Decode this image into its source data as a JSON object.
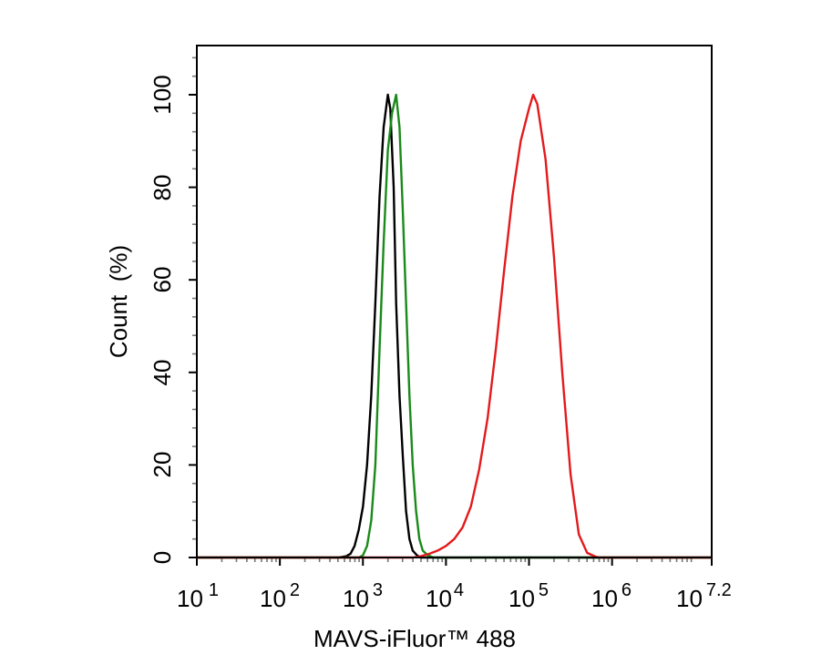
{
  "chart_data": {
    "type": "line",
    "title": "",
    "xlabel": "MAVS-iFluor™ 488",
    "ylabel": "Count  (%)",
    "x_scale": "log10",
    "xlim": [
      1,
      7.2
    ],
    "ylim": [
      0,
      100
    ],
    "x_ticks": [
      {
        "base": "10",
        "exp": "1",
        "value": 1
      },
      {
        "base": "10",
        "exp": "2",
        "value": 2
      },
      {
        "base": "10",
        "exp": "3",
        "value": 3
      },
      {
        "base": "10",
        "exp": "4",
        "value": 4
      },
      {
        "base": "10",
        "exp": "5",
        "value": 5
      },
      {
        "base": "10",
        "exp": "6",
        "value": 6
      },
      {
        "base": "10",
        "exp": "7.2",
        "value": 7.2
      }
    ],
    "y_ticks": [
      "0",
      "20",
      "40",
      "60",
      "80",
      "100"
    ],
    "grid": false,
    "legend": "none",
    "series": [
      {
        "color": "#000000",
        "points": [
          [
            2.7,
            0
          ],
          [
            2.8,
            0.3
          ],
          [
            2.85,
            0.8
          ],
          [
            2.9,
            2.5
          ],
          [
            2.95,
            6
          ],
          [
            3.0,
            11
          ],
          [
            3.05,
            20
          ],
          [
            3.1,
            35
          ],
          [
            3.15,
            55
          ],
          [
            3.2,
            78
          ],
          [
            3.25,
            93
          ],
          [
            3.3,
            100
          ],
          [
            3.33,
            97
          ],
          [
            3.37,
            80
          ],
          [
            3.4,
            55
          ],
          [
            3.44,
            35
          ],
          [
            3.48,
            22
          ],
          [
            3.52,
            10
          ],
          [
            3.56,
            4
          ],
          [
            3.6,
            1.5
          ],
          [
            3.65,
            0.5
          ],
          [
            3.7,
            0
          ]
        ]
      },
      {
        "color": "#1a8a1a",
        "points": [
          [
            2.95,
            0
          ],
          [
            3.0,
            0.5
          ],
          [
            3.05,
            2.5
          ],
          [
            3.1,
            8
          ],
          [
            3.15,
            20
          ],
          [
            3.2,
            45
          ],
          [
            3.25,
            68
          ],
          [
            3.3,
            88
          ],
          [
            3.35,
            96
          ],
          [
            3.4,
            100
          ],
          [
            3.44,
            93
          ],
          [
            3.48,
            75
          ],
          [
            3.52,
            55
          ],
          [
            3.56,
            35
          ],
          [
            3.6,
            20
          ],
          [
            3.64,
            10
          ],
          [
            3.68,
            4
          ],
          [
            3.72,
            1.5
          ],
          [
            3.78,
            0.5
          ],
          [
            3.85,
            0
          ]
        ]
      },
      {
        "color": "#e31a1c",
        "points": [
          [
            3.6,
            0
          ],
          [
            3.7,
            0.3
          ],
          [
            3.8,
            0.8
          ],
          [
            3.9,
            1.5
          ],
          [
            4.0,
            2.5
          ],
          [
            4.1,
            4
          ],
          [
            4.2,
            6.5
          ],
          [
            4.3,
            11
          ],
          [
            4.4,
            19
          ],
          [
            4.5,
            30
          ],
          [
            4.6,
            45
          ],
          [
            4.7,
            62
          ],
          [
            4.8,
            78
          ],
          [
            4.9,
            90
          ],
          [
            5.0,
            97
          ],
          [
            5.05,
            100
          ],
          [
            5.1,
            98
          ],
          [
            5.2,
            86
          ],
          [
            5.3,
            65
          ],
          [
            5.4,
            40
          ],
          [
            5.5,
            18
          ],
          [
            5.6,
            5
          ],
          [
            5.7,
            1
          ],
          [
            5.8,
            0.2
          ],
          [
            5.85,
            0
          ]
        ]
      }
    ]
  }
}
